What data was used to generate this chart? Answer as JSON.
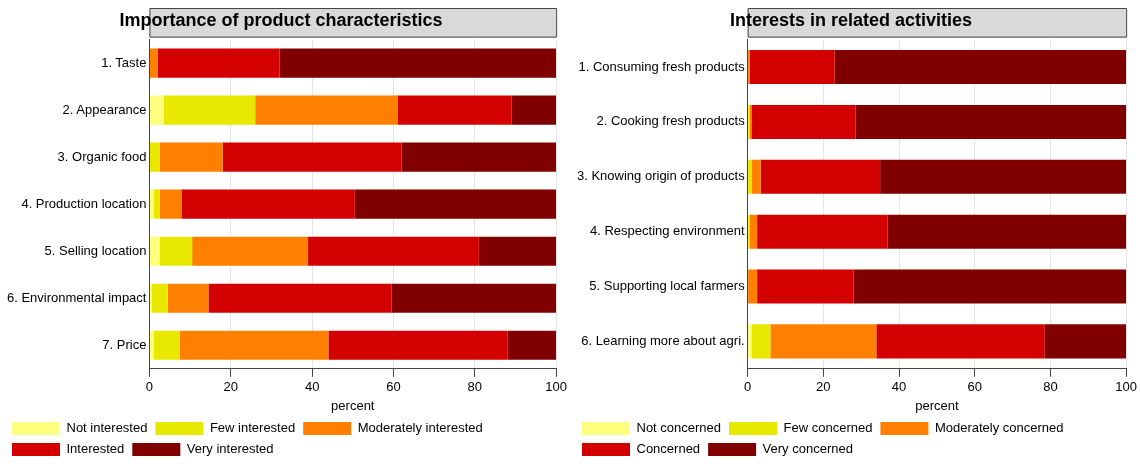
{
  "chart_data": [
    {
      "type": "bar",
      "orientation": "horizontal",
      "stacked": true,
      "title": "Importance of product characteristics",
      "xlabel": "percent",
      "categories": [
        "1. Taste",
        "2. Appearance",
        "3. Organic food",
        "4. Production location",
        "5. Selling location",
        "6. Environmental impact",
        "7. Price"
      ],
      "series": [
        {
          "name": "Not interested",
          "color": "#ffff80",
          "values": [
            0,
            3.5,
            0,
            1,
            2.5,
            0.5,
            1
          ]
        },
        {
          "name": "Few interested",
          "color": "#e8e800",
          "values": [
            0,
            22.5,
            2.5,
            1.5,
            8,
            4,
            6.5
          ]
        },
        {
          "name": "Moderately interested",
          "color": "#ff8000",
          "values": [
            2,
            35,
            15.5,
            5.5,
            28.5,
            10,
            36.5
          ]
        },
        {
          "name": "Interested",
          "color": "#d40000",
          "values": [
            30,
            28,
            44,
            42.5,
            42,
            45,
            44
          ]
        },
        {
          "name": "Very interested",
          "color": "#800000",
          "values": [
            68,
            11,
            38,
            49.5,
            19,
            40.5,
            12
          ]
        }
      ],
      "xlim": [
        0,
        100
      ],
      "xticks": [
        0,
        20,
        40,
        60,
        80,
        100
      ],
      "grid": "x",
      "legend": "bottom"
    },
    {
      "type": "bar",
      "orientation": "horizontal",
      "stacked": true,
      "title": "Interests in related activities",
      "xlabel": "percent",
      "categories": [
        "1. Consuming fresh products",
        "2. Cooking fresh products",
        "3. Knowing origin of products",
        "4. Respecting environment",
        "5. Supporting local farmers",
        "6. Learning more about agri."
      ],
      "series": [
        {
          "name": "Not concerned",
          "color": "#ffff80",
          "values": [
            0,
            0,
            0,
            0,
            0,
            1
          ]
        },
        {
          "name": "Few concerned",
          "color": "#e8e800",
          "values": [
            0,
            0.5,
            1,
            0.5,
            0,
            5
          ]
        },
        {
          "name": "Moderately concerned",
          "color": "#ff8000",
          "values": [
            0.5,
            0.5,
            2.5,
            2,
            2.5,
            28
          ]
        },
        {
          "name": "Concerned",
          "color": "#d40000",
          "values": [
            22.5,
            27.5,
            31.5,
            34.5,
            25.5,
            44.5
          ]
        },
        {
          "name": "Very concerned",
          "color": "#800000",
          "values": [
            77,
            71.5,
            65,
            63,
            72,
            21.5
          ]
        }
      ],
      "xlim": [
        0,
        100
      ],
      "xticks": [
        0,
        20,
        40,
        60,
        80,
        100
      ],
      "grid": "x",
      "legend": "bottom"
    }
  ]
}
